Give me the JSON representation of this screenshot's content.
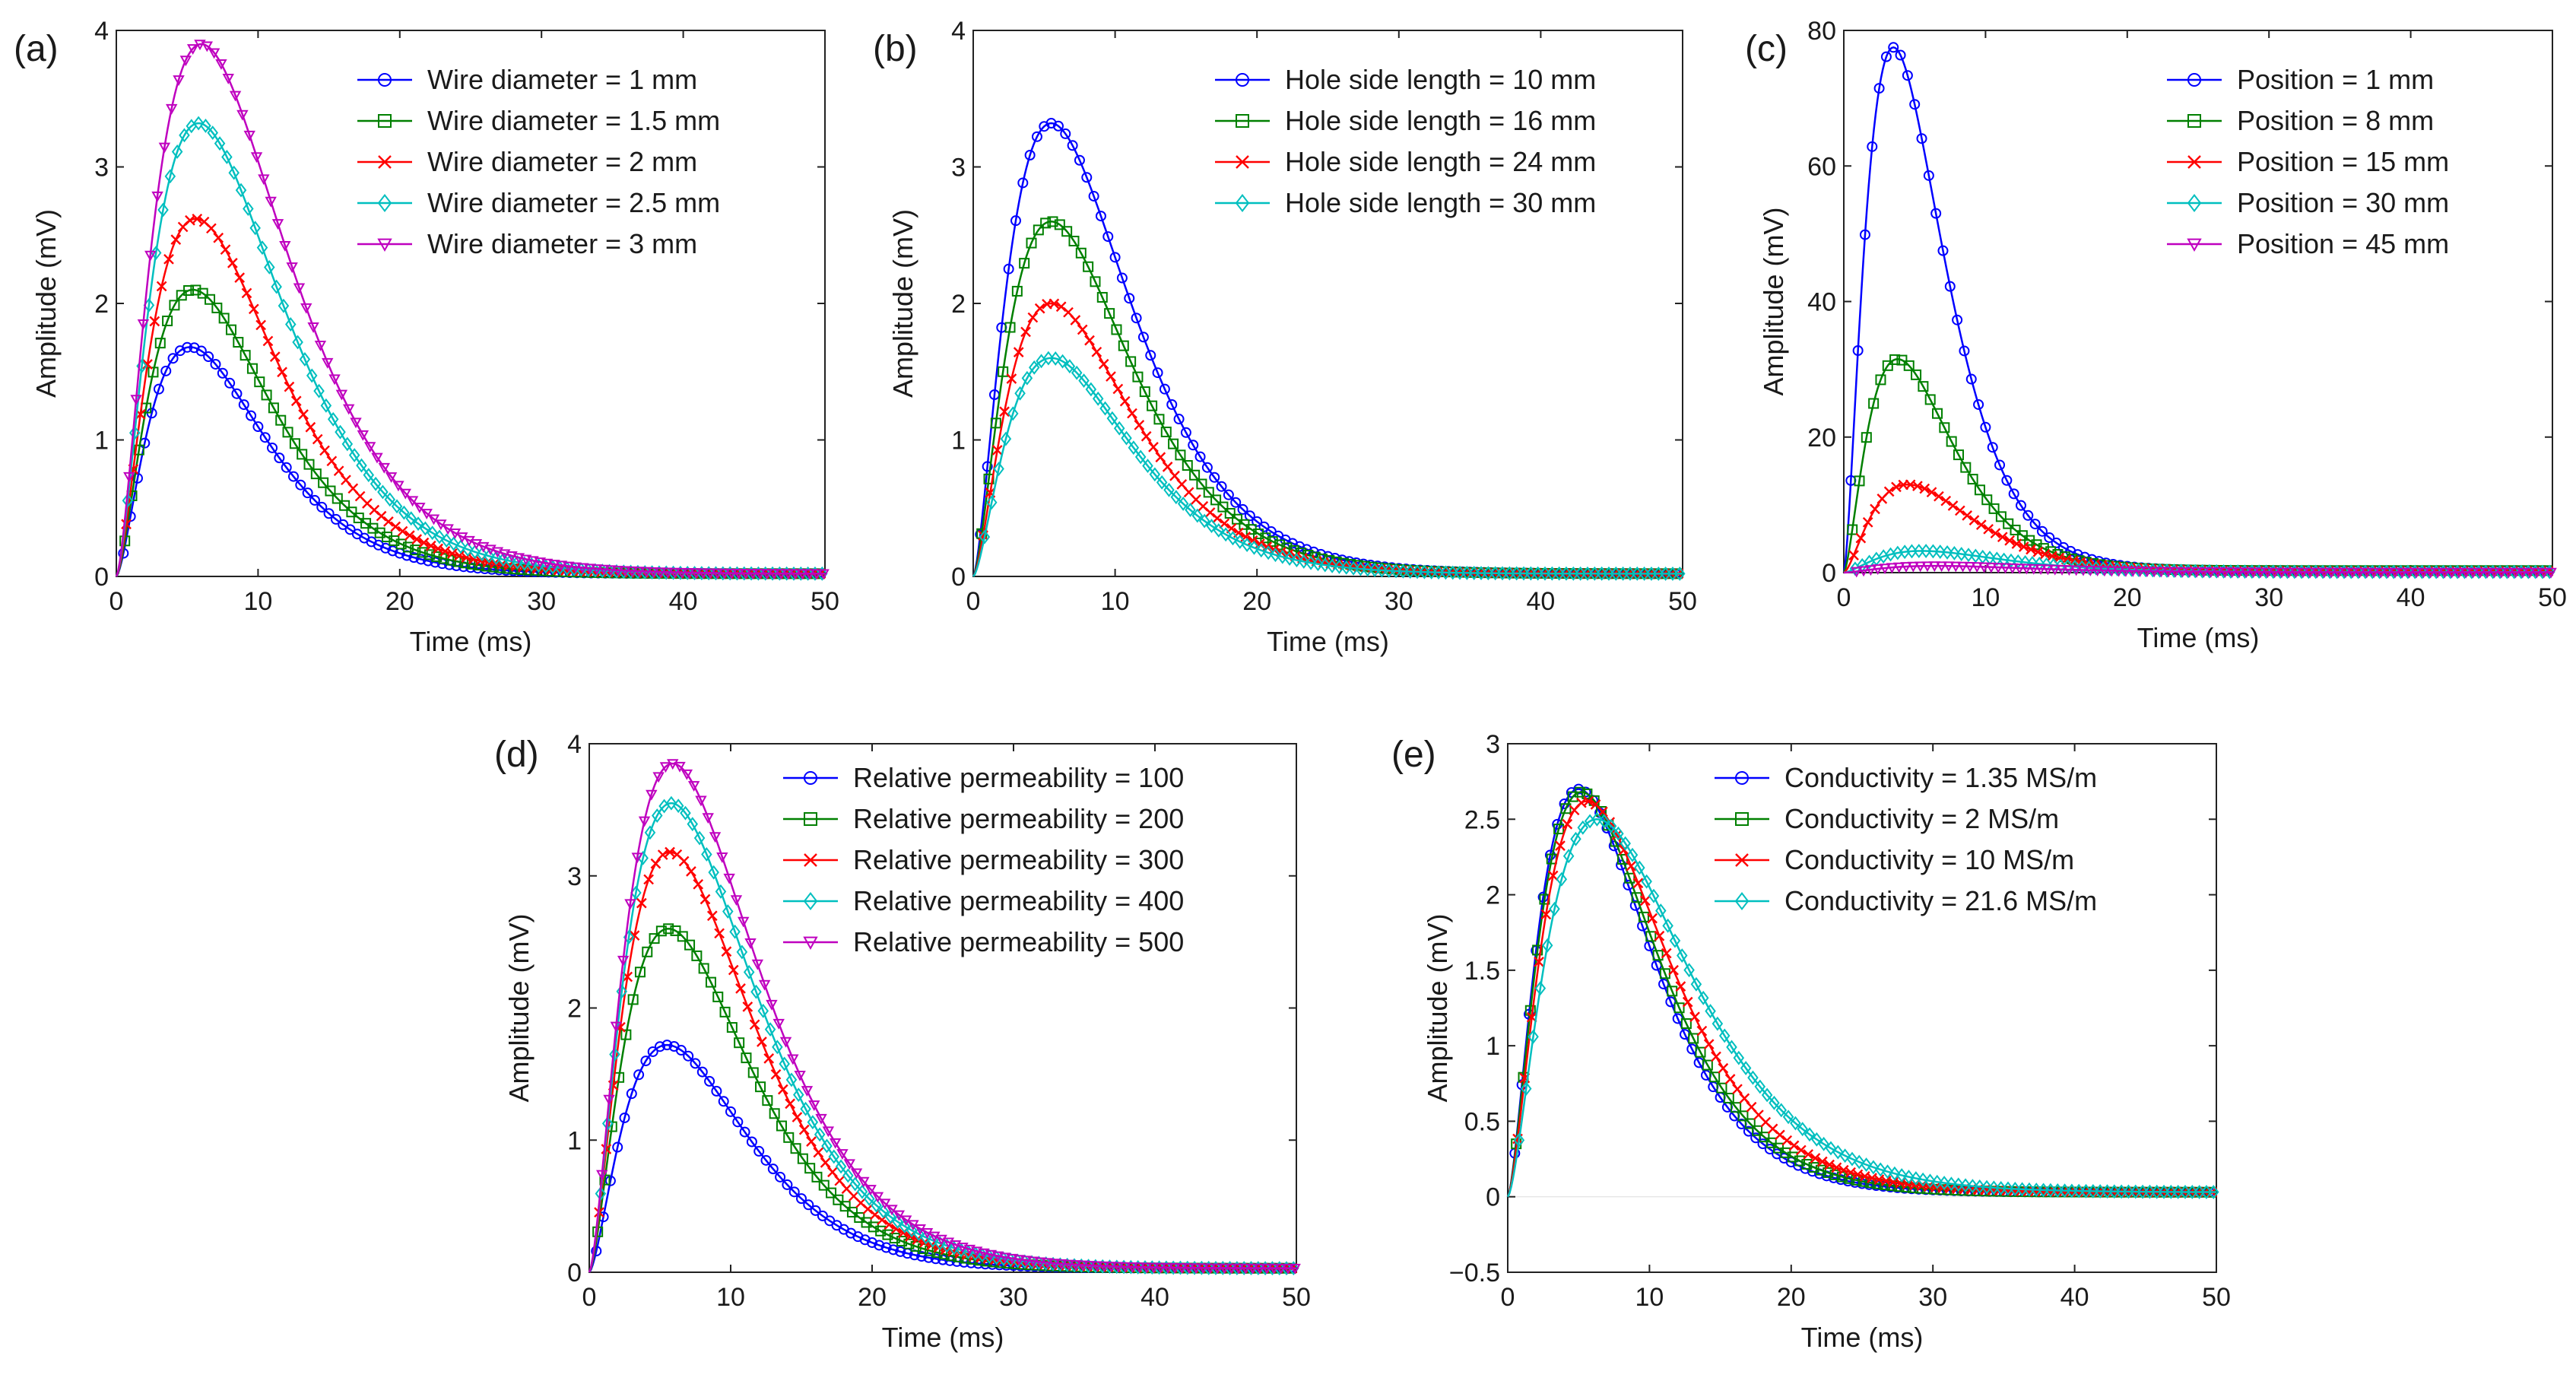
{
  "chart_data": [
    {
      "type": "line",
      "panel_label": "(a)",
      "xlabel": "Time (ms)",
      "ylabel": "Amplitude (mV)",
      "xlim": [
        0,
        50
      ],
      "ylim": [
        0,
        4
      ],
      "xticks": [
        0,
        10,
        20,
        30,
        40,
        50
      ],
      "yticks": [
        0,
        1,
        2,
        3,
        4
      ],
      "legend_position": "top-right",
      "series": [
        {
          "name": "Wire diameter = 1 mm",
          "color": "#0000ff",
          "marker": "circle",
          "peak": 1.68,
          "peak_time": 5.2,
          "tail": 0.02
        },
        {
          "name": "Wire diameter = 1.5 mm",
          "color": "#008000",
          "marker": "square",
          "peak": 2.1,
          "peak_time": 5.4,
          "tail": 0.02
        },
        {
          "name": "Wire diameter = 2 mm",
          "color": "#ff0000",
          "marker": "x",
          "peak": 2.62,
          "peak_time": 5.6,
          "tail": 0.02
        },
        {
          "name": "Wire diameter = 2.5 mm",
          "color": "#00bfbf",
          "marker": "diamond",
          "peak": 3.32,
          "peak_time": 5.8,
          "tail": 0.02
        },
        {
          "name": "Wire diameter = 3 mm",
          "color": "#bf00bf",
          "marker": "triangle-down",
          "peak": 3.9,
          "peak_time": 6.0,
          "tail": 0.02
        }
      ]
    },
    {
      "type": "line",
      "panel_label": "(b)",
      "xlabel": "Time (ms)",
      "ylabel": "Amplitude (mV)",
      "xlim": [
        0,
        50
      ],
      "ylim": [
        0,
        4
      ],
      "xticks": [
        0,
        10,
        20,
        30,
        40,
        50
      ],
      "yticks": [
        0,
        1,
        2,
        3,
        4
      ],
      "legend_position": "top-right",
      "series": [
        {
          "name": "Hole side length = 10 mm",
          "color": "#0000ff",
          "marker": "circle",
          "peak": 3.32,
          "peak_time": 5.5,
          "tail": 0.02
        },
        {
          "name": "Hole side length = 16 mm",
          "color": "#008000",
          "marker": "square",
          "peak": 2.6,
          "peak_time": 5.5,
          "tail": 0.02
        },
        {
          "name": "Hole side length = 24 mm",
          "color": "#ff0000",
          "marker": "x",
          "peak": 2.0,
          "peak_time": 5.5,
          "tail": 0.02
        },
        {
          "name": "Hole side length = 30 mm",
          "color": "#00bfbf",
          "marker": "diamond",
          "peak": 1.6,
          "peak_time": 5.5,
          "tail": 0.02
        }
      ]
    },
    {
      "type": "line",
      "panel_label": "(c)",
      "xlabel": "Time (ms)",
      "ylabel": "Amplitude (mV)",
      "xlim": [
        0,
        50
      ],
      "ylim": [
        0,
        80
      ],
      "xticks": [
        0,
        10,
        20,
        30,
        40,
        50
      ],
      "yticks": [
        0,
        20,
        40,
        60,
        80
      ],
      "legend_position": "top-right",
      "series": [
        {
          "name": "Position = 1 mm",
          "color": "#0000ff",
          "marker": "circle",
          "peak": 77.5,
          "peak_time": 3.5,
          "tail": 0.3
        },
        {
          "name": "Position = 8 mm",
          "color": "#008000",
          "marker": "square",
          "peak": 31.5,
          "peak_time": 3.8,
          "tail": 0.3
        },
        {
          "name": "Position = 15 mm",
          "color": "#ff0000",
          "marker": "x",
          "peak": 13.0,
          "peak_time": 4.5,
          "tail": 0.2
        },
        {
          "name": "Position = 30 mm",
          "color": "#00bfbf",
          "marker": "diamond",
          "peak": 3.2,
          "peak_time": 5.5,
          "tail": 0.1
        },
        {
          "name": "Position = 45 mm",
          "color": "#bf00bf",
          "marker": "triangle-down",
          "peak": 1.0,
          "peak_time": 6.5,
          "tail": 0.05
        }
      ]
    },
    {
      "type": "line",
      "panel_label": "(d)",
      "xlabel": "Time (ms)",
      "ylabel": "Amplitude (mV)",
      "xlim": [
        0,
        50
      ],
      "ylim": [
        0,
        4
      ],
      "xticks": [
        0,
        10,
        20,
        30,
        40,
        50
      ],
      "yticks": [
        0,
        1,
        2,
        3,
        4
      ],
      "legend_position": "top-right",
      "series": [
        {
          "name": "Relative permeability = 100",
          "color": "#0000ff",
          "marker": "circle",
          "peak": 1.72,
          "peak_time": 5.5,
          "tail": 0.03
        },
        {
          "name": "Relative permeability = 200",
          "color": "#008000",
          "marker": "square",
          "peak": 2.6,
          "peak_time": 5.6,
          "tail": 0.03
        },
        {
          "name": "Relative permeability = 300",
          "color": "#ff0000",
          "marker": "x",
          "peak": 3.18,
          "peak_time": 5.7,
          "tail": 0.03
        },
        {
          "name": "Relative permeability = 400",
          "color": "#00bfbf",
          "marker": "diamond",
          "peak": 3.55,
          "peak_time": 5.8,
          "tail": 0.03
        },
        {
          "name": "Relative permeability = 500",
          "color": "#bf00bf",
          "marker": "triangle-down",
          "peak": 3.85,
          "peak_time": 5.9,
          "tail": 0.03
        }
      ]
    },
    {
      "type": "line",
      "panel_label": "(e)",
      "xlabel": "Time (ms)",
      "ylabel": "Amplitude (mV)",
      "xlim": [
        0,
        50
      ],
      "ylim": [
        -0.5,
        3
      ],
      "xticks": [
        0,
        10,
        20,
        30,
        40,
        50
      ],
      "yticks": [
        -0.5,
        0,
        0.5,
        1,
        1.5,
        2,
        2.5,
        3
      ],
      "legend_position": "top-right",
      "series": [
        {
          "name": "Conductivity = 1.35 MS/m",
          "color": "#0000ff",
          "marker": "circle",
          "peak": 2.7,
          "peak_time": 5.0,
          "tail": 0.03
        },
        {
          "name": "Conductivity = 2 MS/m",
          "color": "#008000",
          "marker": "square",
          "peak": 2.68,
          "peak_time": 5.2,
          "tail": 0.03
        },
        {
          "name": "Conductivity = 10 MS/m",
          "color": "#ff0000",
          "marker": "x",
          "peak": 2.62,
          "peak_time": 5.6,
          "tail": 0.03
        },
        {
          "name": "Conductivity = 21.6 MS/m",
          "color": "#00bfbf",
          "marker": "diamond",
          "peak": 2.5,
          "peak_time": 6.3,
          "tail": 0.03
        }
      ]
    }
  ]
}
